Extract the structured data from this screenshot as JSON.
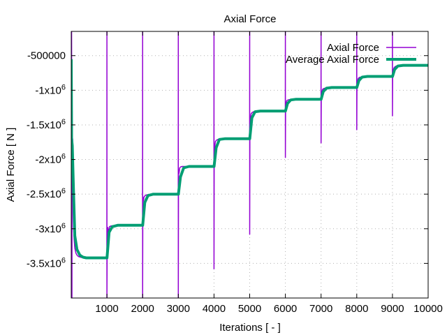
{
  "chart_data": {
    "type": "line",
    "title": "Axial Force",
    "xlabel": "Iterations [ - ]",
    "ylabel": "Axial Force [ N ]",
    "xlim": [
      0,
      10000
    ],
    "ylim": [
      -4000000,
      -150000
    ],
    "grid": true,
    "legend_position": "top-right",
    "x_ticks": [
      {
        "value": 1000,
        "label": "1000"
      },
      {
        "value": 2000,
        "label": "2000"
      },
      {
        "value": 3000,
        "label": "3000"
      },
      {
        "value": 4000,
        "label": "4000"
      },
      {
        "value": 5000,
        "label": "5000"
      },
      {
        "value": 6000,
        "label": "6000"
      },
      {
        "value": 7000,
        "label": "7000"
      },
      {
        "value": 8000,
        "label": "8000"
      },
      {
        "value": 9000,
        "label": "9000"
      },
      {
        "value": 10000,
        "label": "10000"
      }
    ],
    "y_ticks": [
      {
        "value": -500000,
        "base": "-500000",
        "exp": ""
      },
      {
        "value": -1000000,
        "base": "-1x10",
        "exp": "6"
      },
      {
        "value": -1500000,
        "base": "-1.5x10",
        "exp": "6"
      },
      {
        "value": -2000000,
        "base": "-2x10",
        "exp": "6"
      },
      {
        "value": -2500000,
        "base": "-2.5x10",
        "exp": "6"
      },
      {
        "value": -3000000,
        "base": "-3x10",
        "exp": "6"
      },
      {
        "value": -3500000,
        "base": "-3.5x10",
        "exp": "6"
      }
    ],
    "series": [
      {
        "name": "Axial Force",
        "color": "#9400d3",
        "line_width": 1.5,
        "x": [
          0,
          5,
          10,
          15,
          20,
          25,
          30,
          40,
          50,
          60,
          80,
          100,
          130,
          160,
          200,
          260,
          330,
          420,
          500,
          700,
          999,
          1000,
          1000,
          1005,
          1010,
          1020,
          1040,
          1070,
          1110,
          1200,
          1400,
          1700,
          1999,
          2000,
          2000,
          2005,
          2010,
          2020,
          2040,
          2070,
          2110,
          2200,
          2400,
          2700,
          2999,
          3000,
          3000,
          3005,
          3010,
          3020,
          3040,
          3070,
          3110,
          3200,
          3400,
          3700,
          3999,
          4000,
          4000,
          4005,
          4010,
          4020,
          4040,
          4070,
          4110,
          4200,
          4400,
          4700,
          4999,
          5000,
          5000,
          5005,
          5010,
          5020,
          5040,
          5070,
          5110,
          5200,
          5400,
          5700,
          5999,
          6000,
          6000,
          6005,
          6010,
          6020,
          6040,
          6070,
          6110,
          6200,
          6400,
          6700,
          6999,
          7000,
          7000,
          7005,
          7010,
          7020,
          7040,
          7070,
          7110,
          7200,
          7400,
          7700,
          7999,
          8000,
          8000,
          8005,
          8010,
          8020,
          8040,
          8070,
          8110,
          8200,
          8400,
          8700,
          8999,
          9000,
          9000,
          9005,
          9010,
          9020,
          9040,
          9070,
          9110,
          9200,
          9400,
          9700,
          10000
        ],
        "y": [
          -500000,
          -4000000,
          -150000,
          -2000000,
          -4000000,
          -1300000,
          -2600000,
          -1700000,
          -2500000,
          -2900000,
          -3150000,
          -3280000,
          -3350000,
          -3380000,
          -3400000,
          -3410000,
          -3420000,
          -3420000,
          -3420000,
          -3420000,
          -3420000,
          -150000,
          -4000000,
          -3300000,
          -3050000,
          -2980000,
          -3050000,
          -2970000,
          -2960000,
          -2955000,
          -2950000,
          -2950000,
          -2950000,
          -150000,
          -4000000,
          -2700000,
          -2550000,
          -2600000,
          -2540000,
          -2520000,
          -2510000,
          -2505000,
          -2500000,
          -2500000,
          -2500000,
          -150000,
          -4000000,
          -2300000,
          -2150000,
          -2200000,
          -2120000,
          -2105000,
          -2100000,
          -2100000,
          -2100000,
          -2100000,
          -2100000,
          -150000,
          -3580000,
          -1900000,
          -1780000,
          -1820000,
          -1740000,
          -1720000,
          -1710000,
          -1705000,
          -1700000,
          -1700000,
          -1700000,
          -150000,
          -3080000,
          -1500000,
          -1380000,
          -1420000,
          -1340000,
          -1320000,
          -1310000,
          -1305000,
          -1300000,
          -1300000,
          -1300000,
          -150000,
          -1970000,
          -1250000,
          -1180000,
          -1200000,
          -1150000,
          -1140000,
          -1135000,
          -1130000,
          -1130000,
          -1130000,
          -1130000,
          -150000,
          -1760000,
          -1080000,
          -1020000,
          -1040000,
          -990000,
          -975000,
          -970000,
          -965000,
          -960000,
          -960000,
          -960000,
          -150000,
          -1570000,
          -900000,
          -860000,
          -880000,
          -830000,
          -815000,
          -810000,
          -805000,
          -800000,
          -800000,
          -800000,
          -150000,
          -1370000,
          -750000,
          -700000,
          -720000,
          -680000,
          -660000,
          -650000,
          -645000,
          -640000,
          -640000,
          -640000
        ]
      },
      {
        "name": "Average Axial Force",
        "color": "#009e73",
        "line_width": 4,
        "x": [
          0,
          10,
          30,
          60,
          100,
          160,
          240,
          330,
          420,
          500,
          1000,
          1001,
          1060,
          1150,
          1300,
          1999,
          2001,
          2060,
          2150,
          2300,
          2999,
          3001,
          3060,
          3150,
          3300,
          3999,
          4001,
          4060,
          4150,
          4300,
          4999,
          5001,
          5060,
          5150,
          5300,
          5999,
          6001,
          6060,
          6150,
          6300,
          6999,
          7001,
          7060,
          7150,
          7300,
          7999,
          8001,
          8060,
          8150,
          8300,
          8999,
          9001,
          9060,
          9150,
          9300,
          10000
        ],
        "y": [
          -550000,
          -1700000,
          -1800000,
          -2400000,
          -3100000,
          -3300000,
          -3380000,
          -3410000,
          -3420000,
          -3420000,
          -3420000,
          -3420000,
          -3050000,
          -2970000,
          -2950000,
          -2950000,
          -2950000,
          -2620000,
          -2520000,
          -2500000,
          -2500000,
          -2500000,
          -2250000,
          -2120000,
          -2100000,
          -2100000,
          -2100000,
          -1830000,
          -1710000,
          -1700000,
          -1700000,
          -1700000,
          -1400000,
          -1310000,
          -1300000,
          -1300000,
          -1300000,
          -1190000,
          -1140000,
          -1130000,
          -1130000,
          -1130000,
          -1020000,
          -970000,
          -960000,
          -960000,
          -960000,
          -860000,
          -810000,
          -800000,
          -800000,
          -800000,
          -700000,
          -650000,
          -640000,
          -640000
        ]
      }
    ]
  }
}
